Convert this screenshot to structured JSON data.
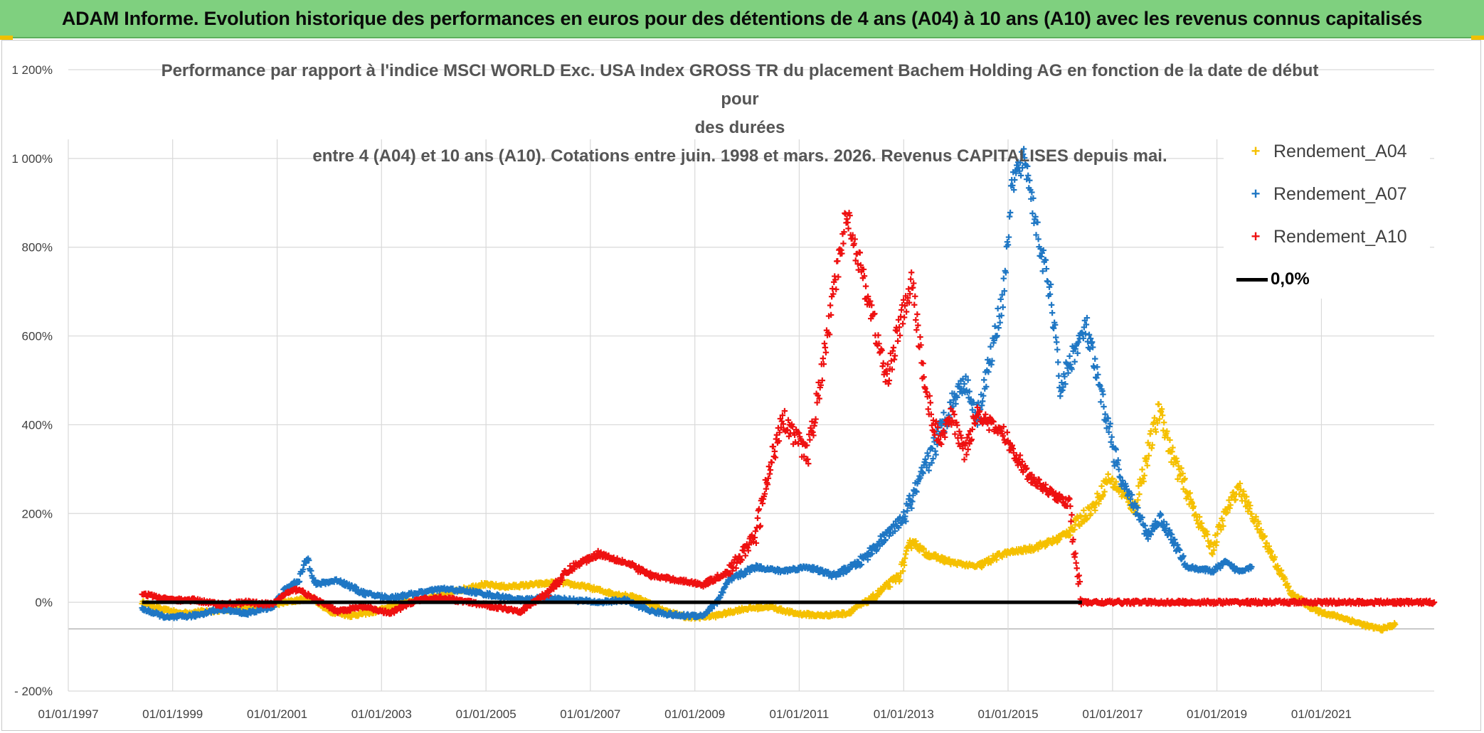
{
  "banner": {
    "title": "ADAM Informe. Evolution historique des performances en euros pour des détentions de 4 ans (A04) à 10 ans (A10) avec les revenus connus capitalisés"
  },
  "colors": {
    "banner_bg": "#7fd07f",
    "A04": "#f5c000",
    "A07": "#1f77c4",
    "A10": "#ee1111",
    "zero": "#000000"
  },
  "chart_data": {
    "type": "scatter",
    "title_lines": [
      "Performance par rapport à l'indice MSCI WORLD Exc. USA Index GROSS TR  du placement Bachem Holding AG en fonction de la date de début pour",
      "des durées",
      "entre 4 (A04) et 10 ans (A10). Cotations entre juin. 1998 et mars. 2026. Revenus CAPITALISES depuis mai."
    ],
    "x_axis": {
      "type": "date",
      "range": [
        "1997-01-01",
        "2023-03-01"
      ],
      "tick_labels": [
        "01/01/1997",
        "01/01/1999",
        "01/01/2001",
        "01/01/2003",
        "01/01/2005",
        "01/01/2007",
        "01/01/2009",
        "01/01/2011",
        "01/01/2013",
        "01/01/2015",
        "01/01/2017",
        "01/01/2019",
        "01/01/2021"
      ]
    },
    "y_axis": {
      "unit": "%",
      "range": [
        -200,
        1200
      ],
      "tick_values": [
        -200,
        0,
        200,
        400,
        600,
        800,
        1000,
        1200
      ],
      "tick_labels": [
        "- 200%",
        "0%",
        "200%",
        "400%",
        "600%",
        "800%",
        "1 000%",
        "1 200%"
      ]
    },
    "grid": true,
    "legend_position": "top-right",
    "series": [
      {
        "name": "Rendement_A04",
        "marker": "+",
        "points": [
          [
            "1998-06-01",
            0
          ],
          [
            "1998-10-01",
            -15
          ],
          [
            "1999-03-01",
            -25
          ],
          [
            "1999-09-01",
            -20
          ],
          [
            "2000-03-01",
            -15
          ],
          [
            "2000-09-01",
            -10
          ],
          [
            "2001-03-01",
            0
          ],
          [
            "2001-09-01",
            10
          ],
          [
            "2002-01-01",
            -20
          ],
          [
            "2002-06-01",
            -30
          ],
          [
            "2002-12-01",
            -20
          ],
          [
            "2003-06-01",
            0
          ],
          [
            "2003-12-01",
            10
          ],
          [
            "2004-06-01",
            25
          ],
          [
            "2004-12-01",
            40
          ],
          [
            "2005-06-01",
            35
          ],
          [
            "2005-12-01",
            40
          ],
          [
            "2006-06-01",
            45
          ],
          [
            "2006-12-01",
            35
          ],
          [
            "2007-06-01",
            20
          ],
          [
            "2007-12-01",
            10
          ],
          [
            "2008-06-01",
            -20
          ],
          [
            "2008-12-01",
            -35
          ],
          [
            "2009-06-01",
            -30
          ],
          [
            "2009-12-01",
            -15
          ],
          [
            "2010-06-01",
            -10
          ],
          [
            "2010-12-01",
            -25
          ],
          [
            "2011-06-01",
            -30
          ],
          [
            "2011-12-01",
            -25
          ],
          [
            "2012-06-01",
            10
          ],
          [
            "2012-12-01",
            60
          ],
          [
            "2013-03-01",
            140
          ],
          [
            "2013-06-01",
            110
          ],
          [
            "2013-12-01",
            90
          ],
          [
            "2014-06-01",
            80
          ],
          [
            "2014-12-01",
            110
          ],
          [
            "2015-06-01",
            120
          ],
          [
            "2015-12-01",
            140
          ],
          [
            "2016-03-01",
            160
          ],
          [
            "2016-09-01",
            220
          ],
          [
            "2016-12-01",
            280
          ],
          [
            "2017-03-01",
            250
          ],
          [
            "2017-06-01",
            210
          ],
          [
            "2017-09-01",
            330
          ],
          [
            "2017-12-01",
            440
          ],
          [
            "2018-02-01",
            350
          ],
          [
            "2018-06-01",
            250
          ],
          [
            "2018-09-01",
            180
          ],
          [
            "2018-12-01",
            120
          ],
          [
            "2019-03-01",
            200
          ],
          [
            "2019-06-01",
            260
          ],
          [
            "2019-09-01",
            200
          ],
          [
            "2019-12-01",
            140
          ],
          [
            "2020-03-01",
            80
          ],
          [
            "2020-06-01",
            20
          ],
          [
            "2020-12-01",
            -20
          ],
          [
            "2021-06-01",
            -35
          ],
          [
            "2021-12-01",
            -55
          ],
          [
            "2022-03-01",
            -60
          ],
          [
            "2022-06-01",
            -50
          ]
        ]
      },
      {
        "name": "Rendement_A07",
        "marker": "+",
        "points": [
          [
            "1998-06-01",
            -15
          ],
          [
            "1998-12-01",
            -35
          ],
          [
            "1999-06-01",
            -30
          ],
          [
            "1999-12-01",
            -15
          ],
          [
            "2000-06-01",
            -25
          ],
          [
            "2000-12-01",
            -10
          ],
          [
            "2001-03-01",
            30
          ],
          [
            "2001-06-01",
            50
          ],
          [
            "2001-08-01",
            100
          ],
          [
            "2001-10-01",
            40
          ],
          [
            "2002-03-01",
            50
          ],
          [
            "2002-09-01",
            20
          ],
          [
            "2003-03-01",
            10
          ],
          [
            "2003-09-01",
            20
          ],
          [
            "2004-03-01",
            30
          ],
          [
            "2004-09-01",
            25
          ],
          [
            "2005-03-01",
            15
          ],
          [
            "2005-09-01",
            5
          ],
          [
            "2006-03-01",
            10
          ],
          [
            "2006-09-01",
            5
          ],
          [
            "2007-03-01",
            0
          ],
          [
            "2007-09-01",
            5
          ],
          [
            "2008-03-01",
            -20
          ],
          [
            "2008-09-01",
            -30
          ],
          [
            "2009-03-01",
            -30
          ],
          [
            "2009-06-01",
            0
          ],
          [
            "2009-09-01",
            50
          ],
          [
            "2010-03-01",
            80
          ],
          [
            "2010-09-01",
            70
          ],
          [
            "2011-03-01",
            80
          ],
          [
            "2011-09-01",
            60
          ],
          [
            "2012-03-01",
            90
          ],
          [
            "2012-09-01",
            150
          ],
          [
            "2013-01-01",
            190
          ],
          [
            "2013-06-01",
            300
          ],
          [
            "2013-12-01",
            450
          ],
          [
            "2014-03-01",
            500
          ],
          [
            "2014-06-01",
            420
          ],
          [
            "2014-09-01",
            550
          ],
          [
            "2014-12-01",
            700
          ],
          [
            "2015-02-01",
            950
          ],
          [
            "2015-05-01",
            1000
          ],
          [
            "2015-08-01",
            820
          ],
          [
            "2015-11-01",
            680
          ],
          [
            "2016-01-01",
            480
          ],
          [
            "2016-04-01",
            560
          ],
          [
            "2016-07-01",
            620
          ],
          [
            "2016-10-01",
            480
          ],
          [
            "2016-12-01",
            400
          ],
          [
            "2017-03-01",
            270
          ],
          [
            "2017-06-01",
            220
          ],
          [
            "2017-09-01",
            150
          ],
          [
            "2017-12-01",
            190
          ],
          [
            "2018-03-01",
            140
          ],
          [
            "2018-06-01",
            80
          ],
          [
            "2018-12-01",
            70
          ],
          [
            "2019-03-01",
            90
          ],
          [
            "2019-06-01",
            70
          ],
          [
            "2019-09-01",
            80
          ]
        ]
      },
      {
        "name": "Rendement_A10",
        "marker": "+",
        "points": [
          [
            "1998-06-01",
            20
          ],
          [
            "1998-12-01",
            5
          ],
          [
            "1999-06-01",
            5
          ],
          [
            "1999-12-01",
            -5
          ],
          [
            "2000-06-01",
            0
          ],
          [
            "2000-12-01",
            -5
          ],
          [
            "2001-03-01",
            20
          ],
          [
            "2001-06-01",
            30
          ],
          [
            "2001-09-01",
            10
          ],
          [
            "2002-03-01",
            -20
          ],
          [
            "2002-09-01",
            -10
          ],
          [
            "2003-03-01",
            -25
          ],
          [
            "2003-09-01",
            5
          ],
          [
            "2004-03-01",
            10
          ],
          [
            "2004-09-01",
            0
          ],
          [
            "2005-03-01",
            -10
          ],
          [
            "2005-09-01",
            -20
          ],
          [
            "2006-03-01",
            20
          ],
          [
            "2006-09-01",
            80
          ],
          [
            "2007-03-01",
            110
          ],
          [
            "2007-09-01",
            90
          ],
          [
            "2008-03-01",
            60
          ],
          [
            "2008-09-01",
            50
          ],
          [
            "2009-03-01",
            40
          ],
          [
            "2009-09-01",
            70
          ],
          [
            "2010-03-01",
            150
          ],
          [
            "2010-09-01",
            420
          ],
          [
            "2011-03-01",
            330
          ],
          [
            "2011-06-01",
            500
          ],
          [
            "2011-09-01",
            700
          ],
          [
            "2011-12-01",
            880
          ],
          [
            "2012-03-01",
            760
          ],
          [
            "2012-06-01",
            640
          ],
          [
            "2012-09-01",
            500
          ],
          [
            "2012-12-01",
            620
          ],
          [
            "2013-03-01",
            720
          ],
          [
            "2013-06-01",
            480
          ],
          [
            "2013-09-01",
            360
          ],
          [
            "2013-12-01",
            420
          ],
          [
            "2014-03-01",
            340
          ],
          [
            "2014-06-01",
            430
          ],
          [
            "2014-09-01",
            400
          ],
          [
            "2014-12-01",
            380
          ],
          [
            "2015-03-01",
            330
          ],
          [
            "2015-06-01",
            280
          ],
          [
            "2015-09-01",
            260
          ],
          [
            "2015-12-01",
            240
          ],
          [
            "2016-03-01",
            220
          ],
          [
            "2016-06-01",
            0
          ],
          [
            "2017-06-01",
            0
          ],
          [
            "2018-06-01",
            0
          ],
          [
            "2019-06-01",
            0
          ],
          [
            "2020-06-01",
            0
          ],
          [
            "2021-06-01",
            0
          ],
          [
            "2022-06-01",
            0
          ],
          [
            "2023-03-01",
            0
          ]
        ]
      },
      {
        "name": "0,0%",
        "marker": "line",
        "points": [
          [
            "1998-06-01",
            0
          ],
          [
            "2016-06-01",
            0
          ]
        ]
      }
    ]
  }
}
